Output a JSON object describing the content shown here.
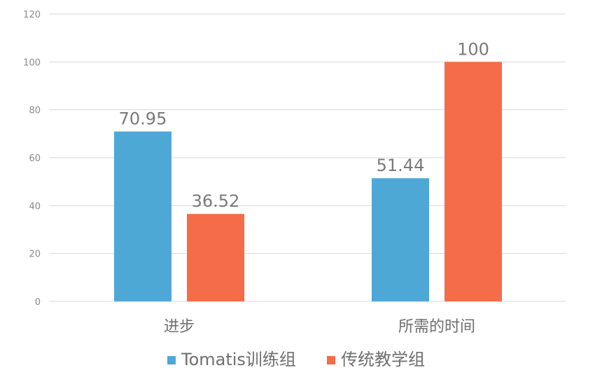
{
  "chart_data": {
    "type": "bar",
    "categories": [
      "进步",
      "所需的时间"
    ],
    "series": [
      {
        "name": "Tomatis训练组",
        "values": [
          70.95,
          51.44
        ],
        "color": "#4ea8d6"
      },
      {
        "name": "传统教学组",
        "values": [
          36.52,
          100
        ],
        "color": "#f46d48"
      }
    ],
    "data_labels": [
      [
        "70.95",
        "51.44"
      ],
      [
        "36.52",
        "100"
      ]
    ],
    "title": "",
    "xlabel": "",
    "ylabel": "",
    "ylim": [
      0,
      120
    ],
    "yticks": [
      0,
      20,
      40,
      60,
      80,
      100,
      120
    ],
    "grid": true,
    "legend_position": "bottom"
  }
}
